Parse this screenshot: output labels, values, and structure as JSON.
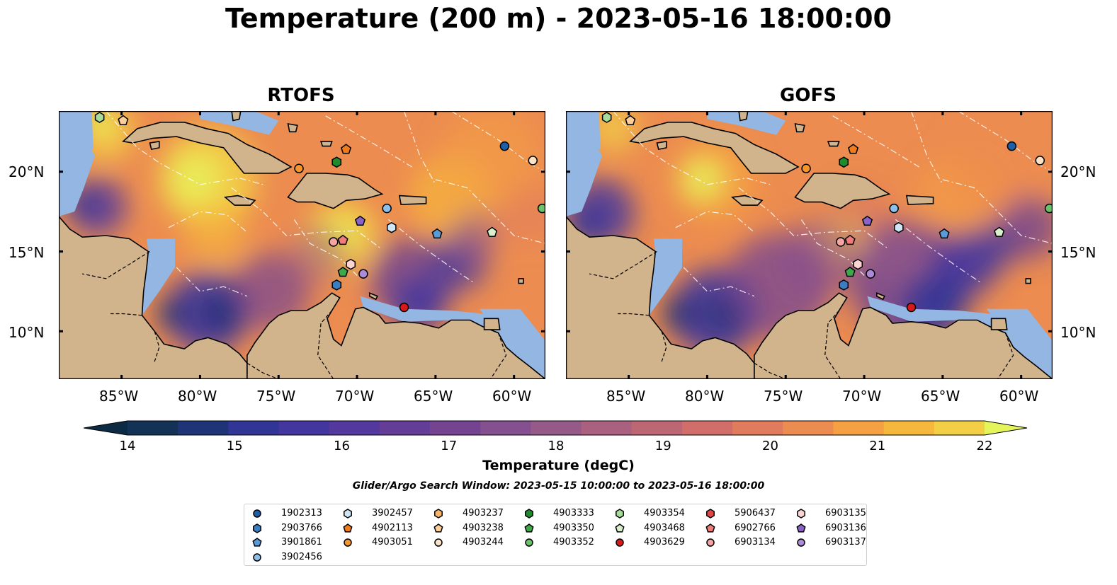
{
  "title": "Temperature (200 m) - 2023-05-16 18:00:00",
  "panels": [
    {
      "name": "RTOFS"
    },
    {
      "name": "GOFS"
    }
  ],
  "axes": {
    "lon_labels": [
      "85°W",
      "80°W",
      "75°W",
      "70°W",
      "65°W",
      "60°W"
    ],
    "lat_labels": [
      "20°N",
      "15°N",
      "10°N"
    ]
  },
  "colorbar": {
    "title": "Temperature (degC)",
    "min": 14,
    "max": 22,
    "step": 0.5,
    "ticks": [
      "14",
      "15",
      "16",
      "17",
      "18",
      "19",
      "20",
      "21",
      "22"
    ],
    "colors": [
      "#0c2a44",
      "#133256",
      "#1f3377",
      "#303596",
      "#43369f",
      "#53399d",
      "#643d97",
      "#744493",
      "#84508f",
      "#965a88",
      "#a9617f",
      "#bd6774",
      "#d16e6a",
      "#e17b5e",
      "#ec8c50",
      "#f4a043",
      "#f6b73d",
      "#f3cf45",
      "#e6f45b"
    ]
  },
  "search_window": "Glider/Argo Search Window: 2023-05-15 10:00:00 to 2023-05-16 18:00:00",
  "legend": [
    {
      "id": "1902313",
      "shape": "circle",
      "color": "#1f5fa8"
    },
    {
      "id": "2903766",
      "shape": "hexagon",
      "color": "#3a7dc0"
    },
    {
      "id": "3901861",
      "shape": "pentagon",
      "color": "#5a9ad6"
    },
    {
      "id": "3902456",
      "shape": "circle",
      "color": "#8cbfea"
    },
    {
      "id": "3902457",
      "shape": "hexagon",
      "color": "#cfe6f7"
    },
    {
      "id": "4902113",
      "shape": "pentagon",
      "color": "#f07b1a"
    },
    {
      "id": "4903051",
      "shape": "circle",
      "color": "#f5952a"
    },
    {
      "id": "4903237",
      "shape": "hexagon",
      "color": "#f9b56b"
    },
    {
      "id": "4903238",
      "shape": "pentagon",
      "color": "#fcce9a"
    },
    {
      "id": "4903244",
      "shape": "circle",
      "color": "#fde3c6"
    },
    {
      "id": "4903333",
      "shape": "hexagon",
      "color": "#1f8a2e"
    },
    {
      "id": "4903350",
      "shape": "pentagon",
      "color": "#3ea84a"
    },
    {
      "id": "4903352",
      "shape": "circle",
      "color": "#69c26a"
    },
    {
      "id": "4903354",
      "shape": "hexagon",
      "color": "#a6dd9a"
    },
    {
      "id": "4903468",
      "shape": "pentagon",
      "color": "#d8f0cc"
    },
    {
      "id": "4903629",
      "shape": "circle",
      "color": "#d7191c"
    },
    {
      "id": "5906437",
      "shape": "hexagon",
      "color": "#e04848"
    },
    {
      "id": "6902766",
      "shape": "pentagon",
      "color": "#ef7b7b"
    },
    {
      "id": "6903134",
      "shape": "circle",
      "color": "#f5a3a3"
    },
    {
      "id": "6903135",
      "shape": "hexagon",
      "color": "#fbd4d4"
    },
    {
      "id": "6903136",
      "shape": "pentagon",
      "color": "#8a63c8"
    },
    {
      "id": "6903137",
      "shape": "circle",
      "color": "#ad8ad8"
    }
  ],
  "observations": [
    {
      "id": "4903354",
      "lon": -86.4,
      "lat": 23.4
    },
    {
      "id": "4903238",
      "lon": -84.9,
      "lat": 23.2
    },
    {
      "id": "1902313",
      "lon": -60.6,
      "lat": 21.6
    },
    {
      "id": "4903244",
      "lon": -58.8,
      "lat": 20.7
    },
    {
      "id": "4902113",
      "lon": -70.7,
      "lat": 21.4
    },
    {
      "id": "4903051",
      "lon": -73.7,
      "lat": 20.2
    },
    {
      "id": "4903333",
      "lon": -71.3,
      "lat": 20.6
    },
    {
      "id": "4903352",
      "lon": -58.2,
      "lat": 17.7
    },
    {
      "id": "3902456",
      "lon": -68.1,
      "lat": 17.7
    },
    {
      "id": "3902457",
      "lon": -67.8,
      "lat": 16.5
    },
    {
      "id": "6903136",
      "lon": -69.8,
      "lat": 16.9
    },
    {
      "id": "3901861",
      "lon": -64.9,
      "lat": 16.1
    },
    {
      "id": "4903468",
      "lon": -61.4,
      "lat": 16.2
    },
    {
      "id": "6903134",
      "lon": -71.5,
      "lat": 15.6
    },
    {
      "id": "6902766",
      "lon": -70.9,
      "lat": 15.7
    },
    {
      "id": "6903135",
      "lon": -70.4,
      "lat": 14.2
    },
    {
      "id": "4903350",
      "lon": -70.9,
      "lat": 13.7
    },
    {
      "id": "6903137",
      "lon": -69.6,
      "lat": 13.6
    },
    {
      "id": "2903766",
      "lon": -71.3,
      "lat": 12.9
    },
    {
      "id": "4903629",
      "lon": -67.0,
      "lat": 11.5
    }
  ]
}
